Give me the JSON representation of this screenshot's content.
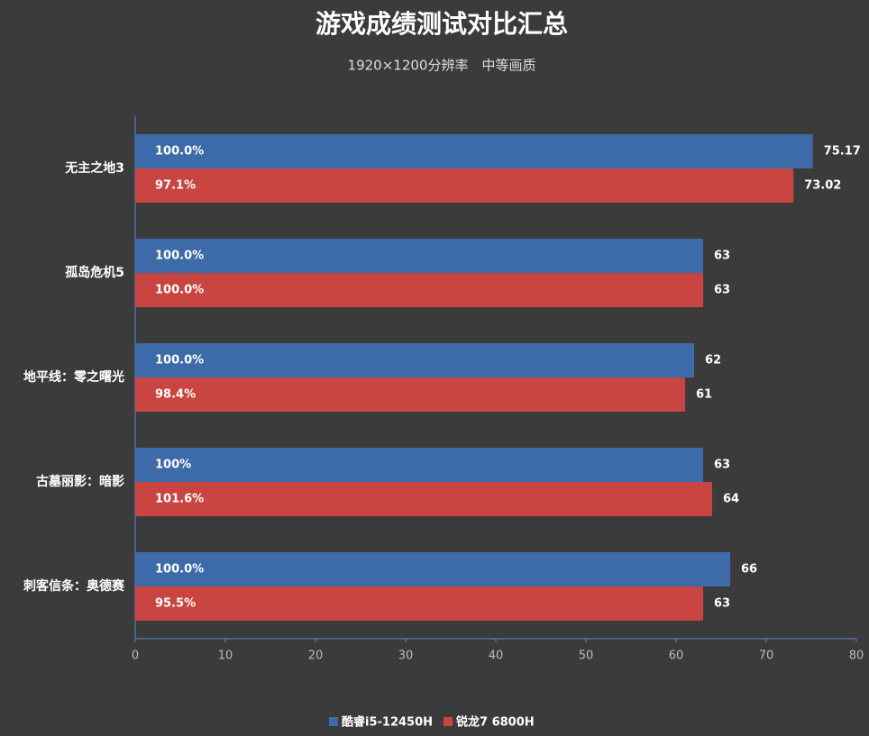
{
  "chart_data": {
    "type": "bar",
    "orientation": "horizontal",
    "title": "游戏成绩测试对比汇总",
    "subtitle": "1920×1200分辨率　中等画质",
    "categories": [
      "无主之地3",
      "孤岛危机5",
      "地平线：零之曙光",
      "古墓丽影：暗影",
      "刺客信条：奥德赛"
    ],
    "series": [
      {
        "name": "酷睿i5-12450H",
        "color": "#3d6aa8",
        "values": [
          75.17,
          63,
          62,
          63,
          66
        ],
        "percent_labels": [
          "100.0%",
          "100.0%",
          "100.0%",
          "100%",
          "100.0%"
        ]
      },
      {
        "name": "锐龙7 6800H",
        "color": "#c84541",
        "values": [
          73.02,
          63,
          61,
          64,
          63
        ],
        "percent_labels": [
          "97.1%",
          "100.0%",
          "98.4%",
          "101.6%",
          "95.5%"
        ]
      }
    ],
    "xlim": [
      0,
      80
    ],
    "xticks": [
      0,
      10,
      20,
      30,
      40,
      50,
      60,
      70,
      80
    ],
    "legend": "bottom"
  }
}
